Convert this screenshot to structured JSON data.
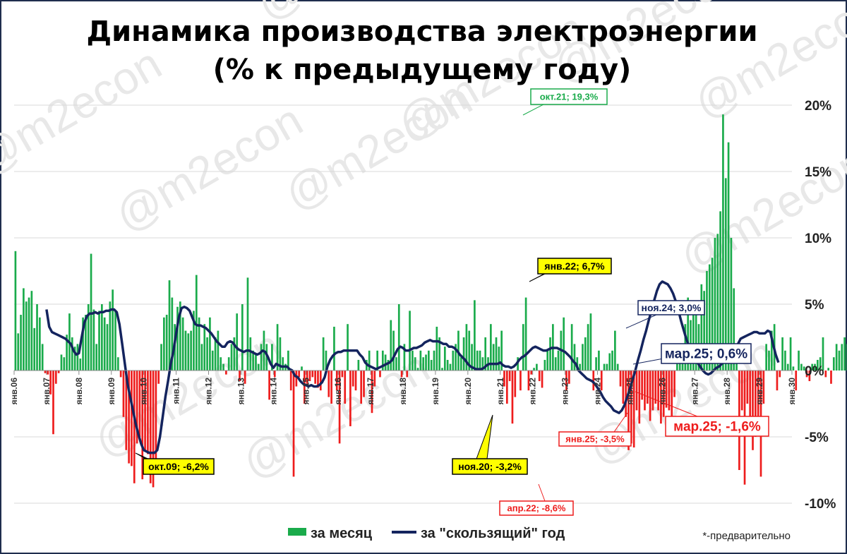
{
  "chart_data": {
    "type": "bar+line",
    "title_line1": "Динамика производства электроэнергии",
    "title_line2": "(% к предыдущему году)",
    "yticks": [
      "20%",
      "15%",
      "10%",
      "5%",
      "0%",
      "-5%",
      "-10%"
    ],
    "ytick_values": [
      20,
      15,
      10,
      5,
      0,
      -5,
      -10
    ],
    "ylim": [
      -10,
      20
    ],
    "xticks": [
      "янв.06",
      "янв.07",
      "янв.08",
      "янв.09",
      "янв.10",
      "янв.11",
      "янв.12",
      "янв.13",
      "янв.14",
      "янв.15",
      "янв.16",
      "янв.17",
      "янв.18",
      "янв.19",
      "янв.20",
      "янв.21",
      "янв.22",
      "янв.23",
      "янв.24",
      "янв.25",
      "янв.26",
      "янв.27",
      "янв.28",
      "янв.29",
      "янв.30"
    ],
    "x_start": "янв.06",
    "grid": true,
    "colors": {
      "positive": "#1aab4b",
      "negative": "#ee1c1c",
      "line": "#14245e",
      "grid": "#d9d9d9"
    },
    "legend": {
      "placement": "bottom",
      "monthly_label": "за месяц",
      "rolling_label": "за \"скользящий\" год"
    },
    "footnote": "*-предварительно",
    "series": [
      {
        "name": "за месяц",
        "values": [
          9.0,
          2.8,
          4.2,
          6.2,
          5.2,
          5.5,
          6.0,
          3.2,
          5.0,
          4.0,
          2.0,
          -0.2,
          -0.3,
          -1.8,
          -4.8,
          -1.0,
          -0.2,
          1.2,
          1.0,
          2.7,
          4.3,
          2.5,
          1.8,
          2.0,
          0.9,
          4.0,
          4.2,
          5.0,
          8.8,
          4.6,
          2.0,
          4.5,
          5.0,
          4.0,
          3.5,
          5.2,
          6.1,
          4.5,
          1.0,
          -0.5,
          -3.5,
          -6.0,
          -7.0,
          -7.2,
          -8.5,
          -5.5,
          -5.0,
          -8.2,
          -6.0,
          -6.3,
          -8.5,
          -8.8,
          -6.8,
          -1.0,
          2.0,
          4.0,
          4.2,
          6.8,
          5.5,
          3.5,
          4.8,
          5.2,
          4.0,
          3.0,
          2.8,
          3.0,
          4.5,
          7.2,
          4.0,
          2.0,
          3.5,
          2.5,
          4.0,
          1.5,
          2.5,
          3.0,
          1.0,
          0.5,
          -0.3,
          1.0,
          2.0,
          2.5,
          4.3,
          -0.8,
          5.0,
          -1.0,
          7.0,
          2.5,
          1.5,
          1.2,
          0.5,
          2.0,
          3.0,
          2.0,
          -2.2,
          2.0,
          -0.5,
          3.5,
          2.5,
          1.0,
          0.5,
          1.5,
          -1.5,
          -8.0,
          -1.2,
          -0.5,
          0.3,
          -2.5,
          -1.0,
          -0.8,
          -0.5,
          -1.0,
          -1.3,
          -1.5,
          2.5,
          1.5,
          -2.0,
          -2.5,
          3.3,
          -1.5,
          -5.5,
          -0.5,
          -2.5,
          3.5,
          -4.2,
          -1.2,
          -1.5,
          0.8,
          -2.5,
          -2.0,
          0.8,
          1.5,
          -3.2,
          -1.2,
          1.5,
          -0.5,
          1.5,
          1.2,
          0.8,
          3.8,
          3.0,
          1.0,
          5.0,
          -0.5,
          2.0,
          -0.5,
          4.5,
          1.5,
          1.0,
          0.2,
          1.5,
          1.0,
          1.2,
          1.5,
          0.8,
          1.5,
          3.3,
          2.5,
          0.2,
          1.8,
          0.8,
          0.5,
          1.5,
          2.0,
          3.0,
          1.0,
          2.5,
          3.5,
          3.0,
          2.0,
          5.3,
          1.5,
          1.5,
          1.0,
          2.5,
          1.0,
          3.5,
          2.0,
          2.5,
          1.8,
          3.0,
          -1.2,
          -2.5,
          -0.8,
          -4.0,
          -2.0,
          1.0,
          -1.5,
          3.5,
          5.5,
          -1.5,
          -0.3,
          0.2,
          0.5,
          -0.8,
          -1.3,
          0.8,
          1.5,
          2.5,
          3.5,
          1.0,
          1.5,
          3.0,
          4.0,
          -1.5,
          -1.0,
          3.5,
          2.0,
          1.0,
          0.5,
          2.0,
          2.5,
          3.5,
          4.3,
          -1.5,
          1.0,
          1.5,
          -1.5,
          0.5,
          0.5,
          1.3,
          1.5,
          3.0,
          0.5,
          -1.2,
          -2.5,
          -3.5,
          -6.0,
          -5.5,
          -5.8,
          -3.0,
          -4.0,
          -2.2,
          -3.0,
          -2.5,
          -3.8,
          -3.0,
          -2.5,
          -3.0,
          -4.0,
          -3.5,
          -2.8,
          -3.0,
          -3.5,
          -2.0,
          0.5,
          1.5,
          2.0,
          3.5,
          5.5,
          3.8,
          4.5,
          4.8,
          3.5,
          6.5,
          6.0,
          7.5,
          8.0,
          8.5,
          10.0,
          10.3,
          12.0,
          19.3,
          14.5,
          17.2,
          10.0,
          6.2,
          1.5,
          -7.5,
          -3.0,
          -8.6,
          -2.5,
          -4.5,
          -6.0,
          -5.0,
          -4.5,
          -8.0,
          -2.5,
          2.0,
          1.5,
          3.0,
          3.5,
          -1.5,
          -0.5,
          2.5,
          1.5,
          0.5,
          2.5,
          0.3,
          -1.5,
          1.5,
          0.5,
          0.3,
          -0.5,
          -0.8,
          0.5,
          0.5,
          0.8,
          1.0,
          2.5,
          -0.5,
          0.2,
          -1.0,
          1.0,
          2.0,
          1.5,
          2.0,
          2.5,
          2.0,
          3.0,
          2.5,
          3.5,
          6.2,
          4.5,
          1.0,
          2.0,
          2.5,
          2.0,
          3.0,
          2.5,
          3.5,
          4.8,
          4.5,
          1.5,
          1.5,
          2.0,
          3.0,
          2.5,
          1.5,
          2.5,
          1.5,
          3.0,
          -0.8,
          -1.5,
          -3.5,
          -2.5,
          -1.6
        ]
      },
      {
        "name": "за \"скользящий\" год",
        "values": [
          4.6,
          3.3,
          2.9,
          2.8,
          2.7,
          2.6,
          2.5,
          2.4,
          2.2,
          2.0,
          1.5,
          1.2,
          1.3,
          2.5,
          3.6,
          4.1,
          4.3,
          4.3,
          4.4,
          4.3,
          4.4,
          4.4,
          4.5,
          4.5,
          4.6,
          4.6,
          4.4,
          3.5,
          2.0,
          0.5,
          -1.0,
          -2.0,
          -3.0,
          -4.0,
          -4.8,
          -5.5,
          -6.0,
          -6.1,
          -6.2,
          -6.2,
          -6.2,
          -6.0,
          -5.0,
          -3.5,
          -2.0,
          -0.8,
          0.5,
          1.5,
          2.8,
          4.0,
          4.7,
          4.8,
          4.7,
          4.5,
          4.0,
          3.5,
          3.4,
          3.4,
          3.3,
          3.2,
          3.0,
          2.8,
          2.5,
          2.2,
          2.0,
          1.8,
          1.8,
          2.1,
          2.2,
          2.1,
          1.8,
          1.6,
          1.5,
          1.4,
          1.5,
          1.5,
          1.4,
          1.3,
          1.2,
          1.3,
          1.5,
          1.4,
          1.0,
          0.5,
          0.2,
          0.5,
          0.4,
          0.3,
          0.3,
          0.3,
          0.1,
          0.0,
          -0.4,
          -0.5,
          -0.8,
          -1.0,
          -1.1,
          -1.2,
          -1.1,
          -1.2,
          -1.2,
          -1.1,
          -0.9,
          -0.5,
          0.3,
          0.8,
          1.1,
          1.3,
          1.4,
          1.4,
          1.5,
          1.5,
          1.5,
          1.5,
          1.5,
          1.5,
          1.2,
          1.0,
          0.6,
          0.4,
          0.3,
          0.2,
          0.1,
          0.2,
          0.3,
          0.4,
          0.5,
          0.6,
          0.8,
          1.2,
          1.6,
          1.8,
          1.7,
          1.5,
          1.5,
          1.6,
          1.7,
          1.7,
          1.8,
          1.9,
          2.1,
          2.2,
          2.3,
          2.2,
          2.2,
          2.2,
          2.1,
          2.0,
          2.0,
          1.8,
          1.8,
          1.7,
          1.5,
          1.2,
          1.0,
          0.8,
          0.5,
          0.3,
          0.2,
          0.1,
          0.1,
          0.1,
          0.2,
          0.4,
          0.5,
          0.5,
          0.5,
          0.5,
          0.6,
          0.4,
          0.3,
          0.3,
          0.2,
          0.3,
          0.5,
          0.8,
          1.0,
          1.1,
          1.3,
          1.5,
          1.7,
          1.8,
          1.7,
          1.6,
          1.5,
          1.5,
          1.6,
          1.7,
          1.7,
          1.7,
          1.6,
          1.5,
          1.4,
          1.2,
          1.0,
          0.7,
          0.5,
          0.0,
          -0.2,
          -0.4,
          -0.6,
          -0.7,
          -0.8,
          -1.0,
          -1.3,
          -1.6,
          -2.0,
          -2.3,
          -2.5,
          -2.7,
          -3.0,
          -3.1,
          -3.2,
          -3.0,
          -2.6,
          -2.0,
          -1.4,
          -0.7,
          0.0,
          0.8,
          1.5,
          2.3,
          3.0,
          3.8,
          4.5,
          5.3,
          6.0,
          6.5,
          6.7,
          6.6,
          6.5,
          6.2,
          5.8,
          5.2,
          4.5,
          3.7,
          3.0,
          2.3,
          1.8,
          1.4,
          1.0,
          0.6,
          0.3,
          0.0,
          -0.2,
          -0.3,
          -0.2,
          0.0,
          0.2,
          0.3,
          0.5,
          0.7,
          0.9,
          1.1,
          1.3,
          1.6,
          2.0,
          2.4,
          2.5,
          2.6,
          2.7,
          2.8,
          2.9,
          2.9,
          2.8,
          2.8,
          2.8,
          3.0,
          2.9,
          2.0,
          1.2,
          0.6
        ]
      }
    ],
    "annotations": [
      {
        "text": "окт.21; 19,3%",
        "style": "green"
      },
      {
        "text": "янв.22; 6,7%",
        "style": "yellow"
      },
      {
        "text": "ноя.24; 3,0%",
        "style": "blue"
      },
      {
        "text": "мар.25; 0,6%",
        "style": "blue-big"
      },
      {
        "text": "окт.09; -6,2%",
        "style": "yellow"
      },
      {
        "text": "ноя.20; -3,2%",
        "style": "yellow"
      },
      {
        "text": "апр.22; -8,6%",
        "style": "red"
      },
      {
        "text": "янв.25; -3,5%",
        "style": "red"
      },
      {
        "text": "мар.25; -1,6%",
        "style": "red-big"
      }
    ],
    "watermark": "@m2econ"
  }
}
